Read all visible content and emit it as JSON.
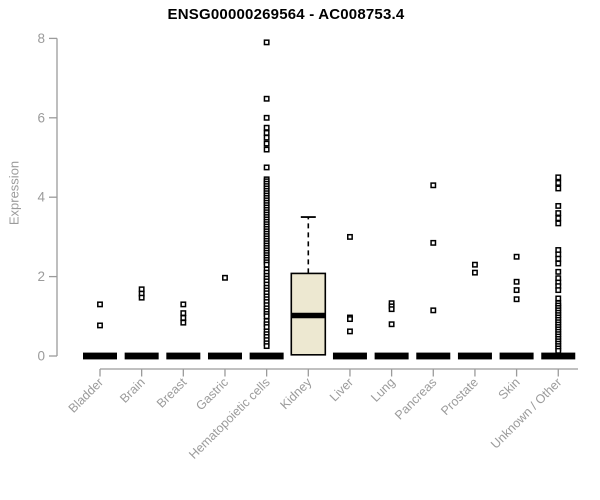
{
  "chart_data": {
    "type": "boxplot",
    "title": "ENSG00000269564 - AC008753.4",
    "ylabel": "Expression",
    "xlabel": "",
    "ylim": [
      0,
      8
    ],
    "yticks": [
      0,
      2,
      4,
      6,
      8
    ],
    "grid": false,
    "legend": "none",
    "colors": {
      "box_fill": "#EDE8D1",
      "box_stroke": "#000000",
      "median": "#000000",
      "point_stroke": "#000000",
      "point_fill": "#ffffff",
      "axis": "#9b9b9b",
      "tick_label": "#9b9b9b",
      "title": "#000000"
    },
    "categories": [
      {
        "label": "Bladder",
        "box": {
          "median": 0,
          "q1": 0,
          "q3": 0,
          "whisker_low": 0,
          "whisker_high": 0
        },
        "points": [
          1.3,
          0.77
        ]
      },
      {
        "label": "Brain",
        "box": {
          "median": 0,
          "q1": 0,
          "q3": 0,
          "whisker_low": 0,
          "whisker_high": 0
        },
        "points": [
          1.68,
          1.57,
          1.47
        ]
      },
      {
        "label": "Breast",
        "box": {
          "median": 0,
          "q1": 0,
          "q3": 0,
          "whisker_low": 0,
          "whisker_high": 0
        },
        "points": [
          1.3,
          1.08,
          0.96,
          0.84
        ]
      },
      {
        "label": "Gastric",
        "box": {
          "median": 0,
          "q1": 0,
          "q3": 0,
          "whisker_low": 0,
          "whisker_high": 0
        },
        "points": [
          1.97
        ]
      },
      {
        "label": "Hematopoietic cells",
        "box": {
          "median": 0,
          "q1": 0,
          "q3": 0,
          "whisker_low": 0,
          "whisker_high": 0
        },
        "points": [
          7.9,
          6.48,
          6.0,
          5.75,
          5.62,
          5.5,
          5.35,
          5.2,
          4.75,
          4.45,
          4.4,
          4.34,
          4.28,
          4.22,
          4.16,
          4.1,
          4.04,
          3.98,
          3.92,
          3.86,
          3.8,
          3.74,
          3.68,
          3.62,
          3.56,
          3.5,
          3.44,
          3.38,
          3.32,
          3.26,
          3.2,
          3.14,
          3.08,
          3.02,
          2.96,
          2.9,
          2.84,
          2.78,
          2.72,
          2.66,
          2.6,
          2.54,
          2.48,
          2.42,
          2.36,
          2.3,
          2.18,
          2.1,
          2.02,
          1.95,
          1.88,
          1.8,
          1.72,
          1.65,
          1.58,
          1.5,
          1.43,
          1.36,
          1.28,
          1.2,
          1.13,
          1.06,
          1.0,
          0.88,
          0.8,
          0.73,
          0.62,
          0.55,
          0.48,
          0.4,
          0.32,
          0.25
        ]
      },
      {
        "label": "Kidney",
        "box": {
          "median": 1.02,
          "q1": 0.03,
          "q3": 2.08,
          "whisker_low": 0.03,
          "whisker_high": 3.5
        },
        "points": []
      },
      {
        "label": "Liver",
        "box": {
          "median": 0,
          "q1": 0,
          "q3": 0,
          "whisker_low": 0,
          "whisker_high": 0
        },
        "points": [
          3.0,
          0.97,
          0.93,
          0.62
        ]
      },
      {
        "label": "Lung",
        "box": {
          "median": 0,
          "q1": 0,
          "q3": 0,
          "whisker_low": 0,
          "whisker_high": 0
        },
        "points": [
          1.33,
          1.25,
          1.18,
          0.8
        ]
      },
      {
        "label": "Pancreas",
        "box": {
          "median": 0,
          "q1": 0,
          "q3": 0,
          "whisker_low": 0,
          "whisker_high": 0
        },
        "points": [
          4.3,
          2.85,
          1.15
        ]
      },
      {
        "label": "Prostate",
        "box": {
          "median": 0,
          "q1": 0,
          "q3": 0,
          "whisker_low": 0,
          "whisker_high": 0
        },
        "points": [
          2.3,
          2.1
        ]
      },
      {
        "label": "Skin",
        "box": {
          "median": 0,
          "q1": 0,
          "q3": 0,
          "whisker_low": 0,
          "whisker_high": 0
        },
        "points": [
          2.5,
          1.87,
          1.66,
          1.43
        ]
      },
      {
        "label": "Unknown / Other",
        "box": {
          "median": 0,
          "q1": 0,
          "q3": 0,
          "whisker_low": 0,
          "whisker_high": 0
        },
        "points": [
          4.5,
          4.36,
          4.22,
          3.78,
          3.6,
          3.47,
          3.34,
          2.67,
          2.56,
          2.45,
          2.33,
          2.12,
          1.96,
          1.85,
          1.76,
          1.66,
          1.45,
          1.33,
          1.27,
          1.21,
          1.15,
          1.09,
          1.03,
          0.97,
          0.91,
          0.85,
          0.79,
          0.73,
          0.67,
          0.61,
          0.55,
          0.49,
          0.43,
          0.37,
          0.31,
          0.25,
          0.19,
          0.13
        ]
      }
    ]
  }
}
